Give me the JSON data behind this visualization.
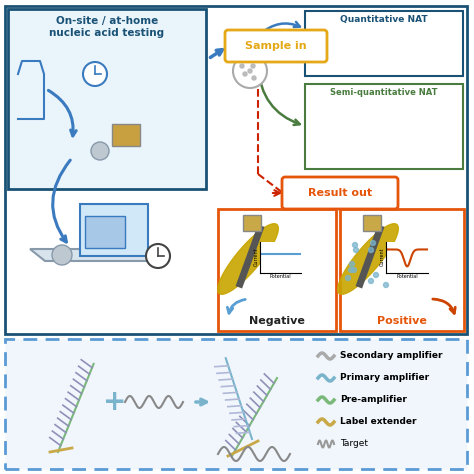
{
  "bg_color": "#ffffff",
  "top_left_box_text": "On-site / at-home\nnucleic acid testing",
  "top_left_text_color": "#1a5276",
  "top_left_fill": "#eaf4fb",
  "top_left_border": "#1a5276",
  "sample_in_label": "Sample in",
  "sample_in_color": "#e5a817",
  "result_out_label": "Result out",
  "result_out_color": "#e5550a",
  "quantitative_nat": "Quantitative NAT",
  "quantitative_nat_color": "#1a5276",
  "semi_quantitative_nat": "Semi-quantitative NAT",
  "semi_quantitative_nat_color": "#4a7c3f",
  "negative_label": "Negative",
  "negative_color": "#222222",
  "positive_label": "Positive",
  "positive_color": "#e5550a",
  "legend_items": [
    {
      "label": "Secondary amplifier",
      "color": "#aaaaaa"
    },
    {
      "label": "Primary amplifier",
      "color": "#7ab4cc"
    },
    {
      "label": "Pre-amplifier",
      "color": "#7ab87a"
    },
    {
      "label": "Label extender",
      "color": "#c8a847"
    },
    {
      "label": "Target",
      "color": "#999999"
    }
  ],
  "outer_border_color": "#1a5276",
  "bottom_border_color": "#5b9bd5",
  "orange_border_color": "#e5550a",
  "blue_arrow_color": "#3a7abf",
  "dark_blue_arrow": "#1a5276",
  "red_dash_color": "#cc2200",
  "electrode_color": "#c8a500",
  "rod_color": "#555555",
  "neg_curve_color": "#5a9fd4",
  "pos_curve_color": "#cc4400",
  "bead_color": "#7ab4cc",
  "spine_color": "#7ab87a",
  "teeth_color": "#9090b8",
  "target_wave_color": "#888888",
  "plus_color": "#7ab4cc",
  "right_arrow_color": "#7ab4cc"
}
